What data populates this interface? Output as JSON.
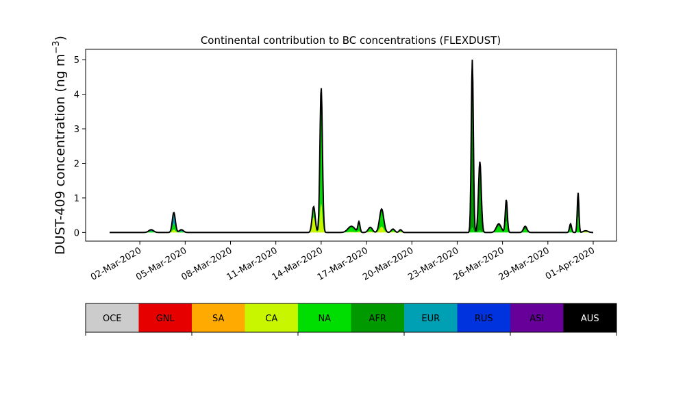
{
  "chart_data": {
    "type": "area",
    "title": "Continental contribution to BC concentrations (FLEXDUST)",
    "ylabel_main": "DUST-409 concentration (ng m",
    "ylabel_sup": "−3",
    "ylabel_close": ")",
    "xlim": [
      "2020-02-28",
      "2020-04-01"
    ],
    "ylim": [
      -0.25,
      5.3
    ],
    "yticks": [
      0,
      1,
      2,
      3,
      4,
      5
    ],
    "xticks": [
      {
        "date": "2020-03-02",
        "label": "02-Mar-2020"
      },
      {
        "date": "2020-03-05",
        "label": "05-Mar-2020"
      },
      {
        "date": "2020-03-08",
        "label": "08-Mar-2020"
      },
      {
        "date": "2020-03-11",
        "label": "11-Mar-2020"
      },
      {
        "date": "2020-03-14",
        "label": "14-Mar-2020"
      },
      {
        "date": "2020-03-17",
        "label": "17-Mar-2020"
      },
      {
        "date": "2020-03-20",
        "label": "20-Mar-2020"
      },
      {
        "date": "2020-03-23",
        "label": "23-Mar-2020"
      },
      {
        "date": "2020-03-26",
        "label": "26-Mar-2020"
      },
      {
        "date": "2020-03-29",
        "label": "29-Mar-2020"
      },
      {
        "date": "2020-04-01",
        "label": "01-Apr-2020"
      }
    ],
    "grid": false,
    "legend": {
      "placement": "colorbar-below"
    },
    "series": [
      {
        "name": "OCE",
        "color": "#cccccc",
        "text_color": "#000000"
      },
      {
        "name": "GNL",
        "color": "#e60000",
        "text_color": "#000000"
      },
      {
        "name": "SA",
        "color": "#ffaa00",
        "text_color": "#000000"
      },
      {
        "name": "CA",
        "color": "#c8f500",
        "text_color": "#000000"
      },
      {
        "name": "NA",
        "color": "#00dd00",
        "text_color": "#000000"
      },
      {
        "name": "AFR",
        "color": "#009900",
        "text_color": "#000000"
      },
      {
        "name": "EUR",
        "color": "#00a0b4",
        "text_color": "#000000"
      },
      {
        "name": "RUS",
        "color": "#0033dd",
        "text_color": "#000000"
      },
      {
        "name": "ASI",
        "color": "#660099",
        "text_color": "#000000"
      },
      {
        "name": "AUS",
        "color": "#000000",
        "text_color": "#ffffff"
      }
    ],
    "events": [
      {
        "date": "2020-03-02 18:00",
        "peak": 0.08,
        "width": 0.35,
        "shares": {
          "NA": 0.5,
          "EUR": 0.5
        }
      },
      {
        "date": "2020-03-04 06:00",
        "peak": 0.58,
        "width": 0.22,
        "shares": {
          "EUR": 0.55,
          "NA": 0.3,
          "CA": 0.15
        }
      },
      {
        "date": "2020-03-04 18:00",
        "peak": 0.08,
        "width": 0.3,
        "shares": {
          "EUR": 0.6,
          "NA": 0.4
        }
      },
      {
        "date": "2020-03-13 12:00",
        "peak": 0.75,
        "width": 0.22,
        "shares": {
          "CA": 0.6,
          "NA": 0.4
        }
      },
      {
        "date": "2020-03-14 00:00",
        "peak": 4.2,
        "width": 0.18,
        "shares": {
          "NA": 0.8,
          "CA": 0.2
        }
      },
      {
        "date": "2020-03-16 00:00",
        "peak": 0.18,
        "width": 0.5,
        "shares": {
          "NA": 0.9,
          "CA": 0.1
        }
      },
      {
        "date": "2020-03-16 12:00",
        "peak": 0.3,
        "width": 0.15,
        "shares": {
          "NA": 0.9,
          "CA": 0.1
        }
      },
      {
        "date": "2020-03-17 06:00",
        "peak": 0.15,
        "width": 0.3,
        "shares": {
          "NA": 0.8,
          "CA": 0.2
        }
      },
      {
        "date": "2020-03-18 00:00",
        "peak": 0.68,
        "width": 0.3,
        "shares": {
          "NA": 0.75,
          "CA": 0.25
        }
      },
      {
        "date": "2020-03-18 18:00",
        "peak": 0.1,
        "width": 0.25,
        "shares": {
          "NA": 0.7,
          "CA": 0.3
        }
      },
      {
        "date": "2020-03-19 06:00",
        "peak": 0.08,
        "width": 0.2,
        "shares": {
          "NA": 0.7,
          "CA": 0.3
        }
      },
      {
        "date": "2020-03-24 00:00",
        "peak": 5.0,
        "width": 0.15,
        "shares": {
          "AFR": 0.97,
          "NA": 0.03
        }
      },
      {
        "date": "2020-03-24 12:00",
        "peak": 2.05,
        "width": 0.2,
        "shares": {
          "AFR": 0.97,
          "NA": 0.03
        }
      },
      {
        "date": "2020-03-25 18:00",
        "peak": 0.25,
        "width": 0.35,
        "shares": {
          "NA": 0.7,
          "AFR": 0.3
        }
      },
      {
        "date": "2020-03-26 06:00",
        "peak": 0.95,
        "width": 0.15,
        "shares": {
          "AFR": 0.65,
          "NA": 0.35
        }
      },
      {
        "date": "2020-03-27 12:00",
        "peak": 0.18,
        "width": 0.25,
        "shares": {
          "AFR": 0.5,
          "NA": 0.5
        }
      },
      {
        "date": "2020-03-30 12:00",
        "peak": 0.25,
        "width": 0.15,
        "shares": {
          "AFR": 0.5,
          "NA": 0.5
        }
      },
      {
        "date": "2020-03-31 00:00",
        "peak": 1.15,
        "width": 0.12,
        "shares": {
          "AFR": 0.6,
          "NA": 0.4
        }
      },
      {
        "date": "2020-03-31 12:00",
        "peak": 0.05,
        "width": 0.35,
        "shares": {
          "NA": 0.6,
          "CA": 0.4
        }
      }
    ]
  }
}
